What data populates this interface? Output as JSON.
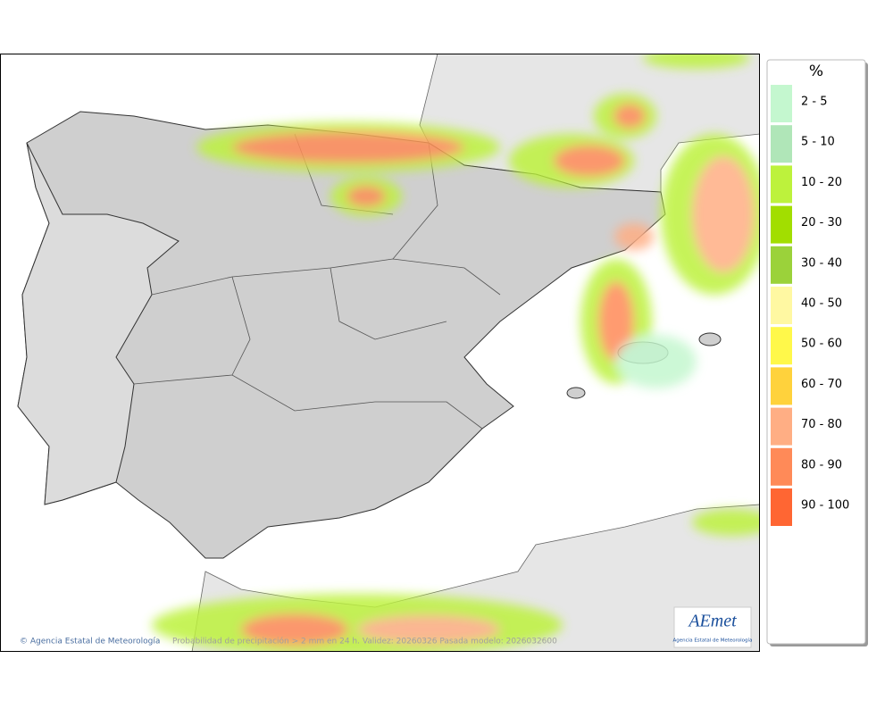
{
  "legend": {
    "title": "%",
    "items": [
      {
        "label": "2 - 5",
        "color": "#c4f7cf"
      },
      {
        "label": "5 - 10",
        "color": "#b0e6b8"
      },
      {
        "label": "10 - 20",
        "color": "#bdf23c"
      },
      {
        "label": "20 - 30",
        "color": "#a2de00"
      },
      {
        "label": "30 - 40",
        "color": "#9bd23a"
      },
      {
        "label": "40 - 50",
        "color": "#fff8a2"
      },
      {
        "label": "50 - 60",
        "color": "#fff84a"
      },
      {
        "label": "60 - 70",
        "color": "#ffd23c"
      },
      {
        "label": "70 - 80",
        "color": "#ffae84"
      },
      {
        "label": "80 - 90",
        "color": "#ff8a58"
      },
      {
        "label": "90 - 100",
        "color": "#ff6633"
      }
    ]
  },
  "footer": {
    "credit": "© Agencia Estatal de Meteorología",
    "caption": "Probabilidad de precipitación > 2 mm en 24 h. Validez: 20260326 Pasada modelo: 2026032600"
  },
  "logo": {
    "name": "AEmet",
    "subtitle": "Agencia Estatal de Meteorología"
  }
}
